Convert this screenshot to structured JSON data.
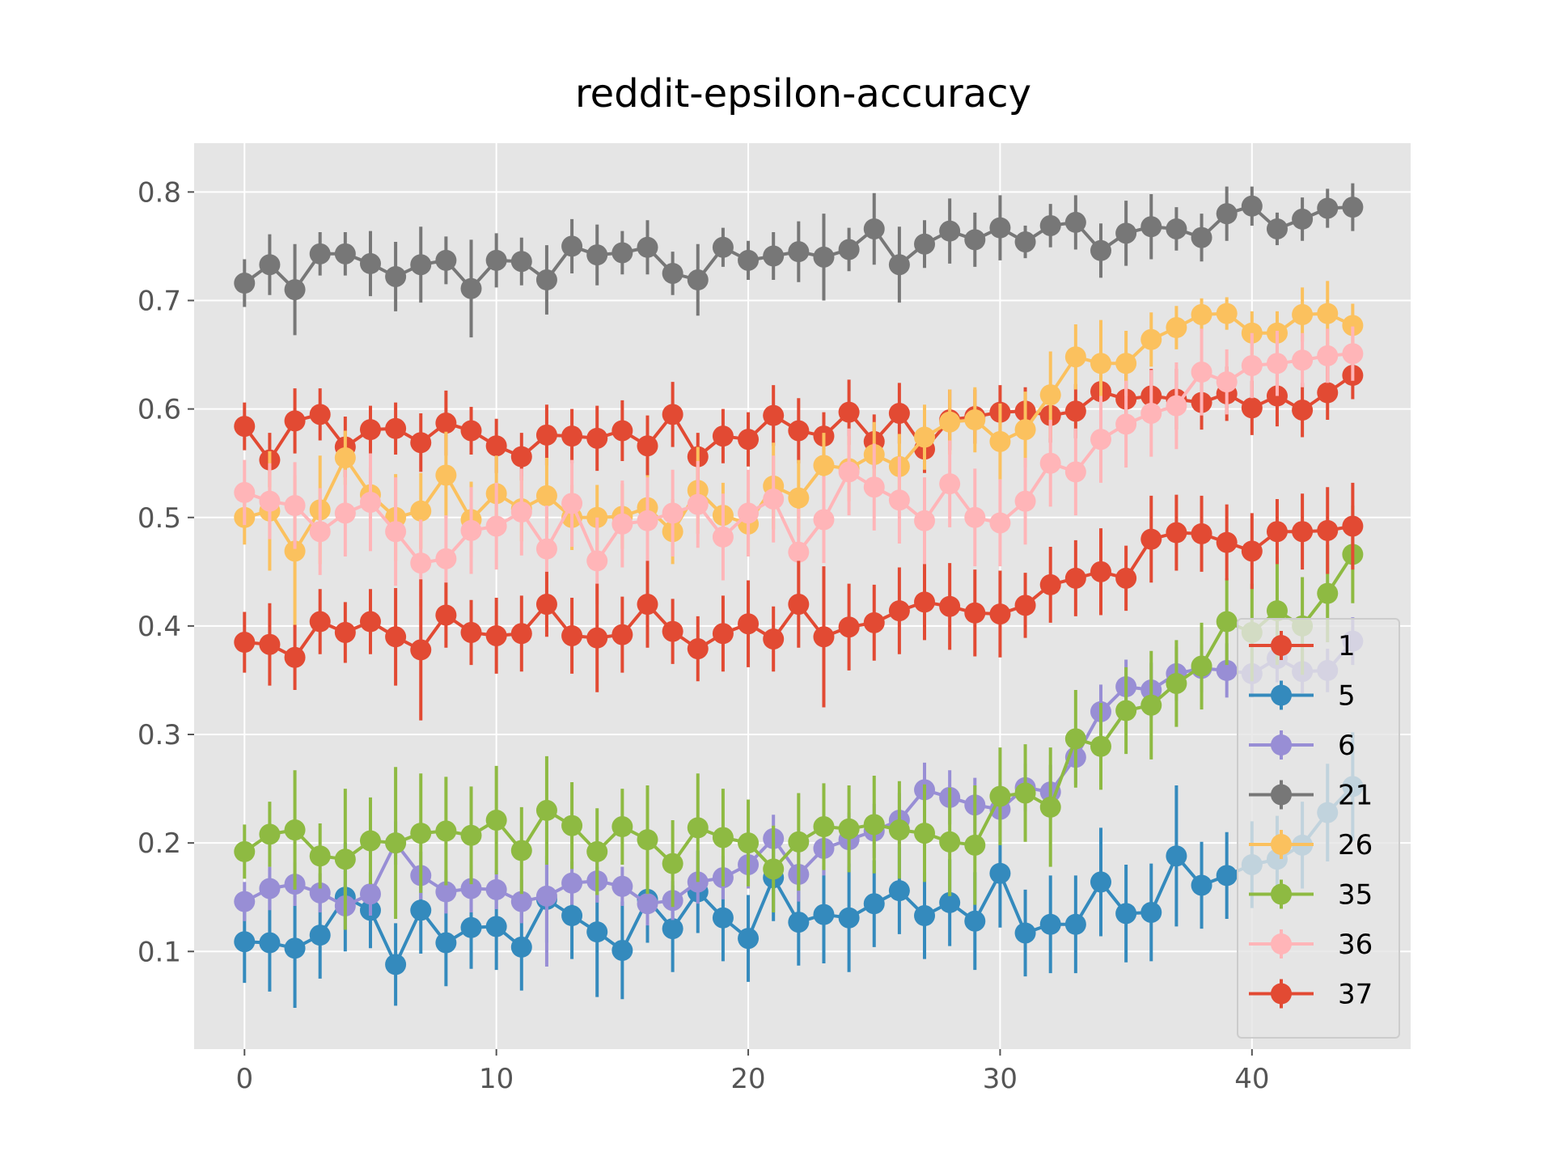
{
  "chart_data": {
    "type": "line",
    "title": "reddit-epsilon-accuracy",
    "xlabel": "",
    "ylabel": "",
    "xlim": [
      -2,
      46.3
    ],
    "ylim": [
      0.01,
      0.845
    ],
    "xticks": [
      0,
      10,
      20,
      30,
      40
    ],
    "xtick_labels": [
      "0",
      "10",
      "20",
      "30",
      "40"
    ],
    "yticks": [
      0.1,
      0.2,
      0.3,
      0.4,
      0.5,
      0.6,
      0.7,
      0.8
    ],
    "ytick_labels": [
      "0.1",
      "0.2",
      "0.3",
      "0.4",
      "0.5",
      "0.6",
      "0.7",
      "0.8"
    ],
    "grid": true,
    "legend_position": "lower-right",
    "error_bars": true,
    "x": [
      0,
      1,
      2,
      3,
      4,
      5,
      6,
      7,
      8,
      9,
      10,
      11,
      12,
      13,
      14,
      15,
      16,
      17,
      18,
      19,
      20,
      21,
      22,
      23,
      24,
      25,
      26,
      27,
      28,
      29,
      30,
      31,
      32,
      33,
      34,
      35,
      36,
      37,
      38,
      39,
      40,
      41,
      42,
      43,
      44
    ],
    "series": [
      {
        "name": "1",
        "color": "#E24A33",
        "values": [
          0.584,
          0.553,
          0.589,
          0.595,
          0.565,
          0.581,
          0.582,
          0.569,
          0.587,
          0.58,
          0.566,
          0.556,
          0.576,
          0.575,
          0.573,
          0.58,
          0.566,
          0.595,
          0.556,
          0.575,
          0.572,
          0.594,
          0.58,
          0.575,
          0.597,
          0.57,
          0.596,
          0.563,
          0.59,
          0.593,
          0.597,
          0.598,
          0.594,
          0.598,
          0.616,
          0.609,
          0.612,
          0.609,
          0.606,
          0.614,
          0.601,
          0.612,
          0.599,
          0.615,
          0.631
        ],
        "errors": [
          0.022,
          0.025,
          0.03,
          0.024,
          0.028,
          0.022,
          0.024,
          0.027,
          0.03,
          0.022,
          0.025,
          0.022,
          0.028,
          0.025,
          0.03,
          0.028,
          0.028,
          0.03,
          0.022,
          0.025,
          0.025,
          0.028,
          0.03,
          0.022,
          0.03,
          0.025,
          0.028,
          0.022,
          0.028,
          0.025,
          0.025,
          0.022,
          0.025,
          0.025,
          0.03,
          0.025,
          0.025,
          0.028,
          0.025,
          0.025,
          0.025,
          0.028,
          0.025,
          0.025,
          0.022
        ]
      },
      {
        "name": "5",
        "color": "#348ABD",
        "values": [
          0.109,
          0.108,
          0.103,
          0.115,
          0.15,
          0.138,
          0.088,
          0.138,
          0.108,
          0.122,
          0.123,
          0.104,
          0.148,
          0.133,
          0.118,
          0.101,
          0.148,
          0.121,
          0.155,
          0.131,
          0.112,
          0.168,
          0.127,
          0.134,
          0.131,
          0.144,
          0.156,
          0.133,
          0.145,
          0.128,
          0.172,
          0.117,
          0.125,
          0.125,
          0.164,
          0.135,
          0.136,
          0.188,
          0.161,
          0.17,
          0.18,
          0.185,
          0.198,
          0.228,
          0.252
        ],
        "errors": [
          0.038,
          0.045,
          0.055,
          0.04,
          0.05,
          0.035,
          0.038,
          0.04,
          0.04,
          0.038,
          0.04,
          0.04,
          0.04,
          0.04,
          0.06,
          0.045,
          0.04,
          0.04,
          0.038,
          0.04,
          0.04,
          0.04,
          0.04,
          0.045,
          0.05,
          0.04,
          0.04,
          0.04,
          0.04,
          0.045,
          0.05,
          0.04,
          0.045,
          0.045,
          0.05,
          0.045,
          0.045,
          0.065,
          0.04,
          0.04,
          0.04,
          0.04,
          0.04,
          0.045,
          0.05
        ]
      },
      {
        "name": "6",
        "color": "#988ED5",
        "values": [
          0.146,
          0.158,
          0.162,
          0.154,
          0.142,
          0.153,
          0.2,
          0.17,
          0.155,
          0.158,
          0.157,
          0.146,
          0.151,
          0.163,
          0.165,
          0.16,
          0.144,
          0.147,
          0.164,
          0.168,
          0.18,
          0.204,
          0.171,
          0.195,
          0.203,
          0.211,
          0.221,
          0.249,
          0.242,
          0.235,
          0.231,
          0.251,
          0.247,
          0.279,
          0.321,
          0.344,
          0.341,
          0.356,
          0.361,
          0.359,
          0.356,
          0.37,
          0.358,
          0.359,
          0.386
        ],
        "errors": [
          0.018,
          0.02,
          0.02,
          0.018,
          0.022,
          0.02,
          0.02,
          0.022,
          0.02,
          0.022,
          0.018,
          0.02,
          0.065,
          0.02,
          0.02,
          0.018,
          0.02,
          0.018,
          0.02,
          0.02,
          0.022,
          0.022,
          0.025,
          0.025,
          0.025,
          0.025,
          0.025,
          0.025,
          0.025,
          0.025,
          0.025,
          0.022,
          0.025,
          0.025,
          0.025,
          0.025,
          0.025,
          0.025,
          0.022,
          0.025,
          0.022,
          0.022,
          0.02,
          0.02,
          0.022
        ]
      },
      {
        "name": "21",
        "color": "#777777",
        "values": [
          0.716,
          0.733,
          0.71,
          0.743,
          0.743,
          0.734,
          0.722,
          0.733,
          0.737,
          0.711,
          0.737,
          0.736,
          0.719,
          0.75,
          0.742,
          0.744,
          0.749,
          0.725,
          0.719,
          0.749,
          0.737,
          0.741,
          0.745,
          0.74,
          0.747,
          0.766,
          0.733,
          0.752,
          0.764,
          0.756,
          0.767,
          0.754,
          0.769,
          0.772,
          0.746,
          0.762,
          0.768,
          0.766,
          0.758,
          0.78,
          0.787,
          0.766,
          0.775,
          0.785,
          0.786
        ],
        "errors": [
          0.022,
          0.028,
          0.042,
          0.02,
          0.02,
          0.03,
          0.032,
          0.035,
          0.022,
          0.045,
          0.025,
          0.022,
          0.032,
          0.025,
          0.028,
          0.02,
          0.025,
          0.02,
          0.033,
          0.018,
          0.018,
          0.022,
          0.028,
          0.04,
          0.02,
          0.033,
          0.035,
          0.022,
          0.03,
          0.025,
          0.03,
          0.015,
          0.02,
          0.025,
          0.025,
          0.03,
          0.03,
          0.02,
          0.022,
          0.025,
          0.018,
          0.015,
          0.02,
          0.018,
          0.022
        ]
      },
      {
        "name": "26",
        "color": "#FBC15E",
        "values": [
          0.5,
          0.506,
          0.469,
          0.507,
          0.555,
          0.521,
          0.5,
          0.506,
          0.539,
          0.498,
          0.522,
          0.508,
          0.52,
          0.5,
          0.5,
          0.501,
          0.509,
          0.487,
          0.525,
          0.502,
          0.494,
          0.529,
          0.518,
          0.548,
          0.545,
          0.558,
          0.547,
          0.574,
          0.588,
          0.59,
          0.57,
          0.581,
          0.613,
          0.648,
          0.642,
          0.642,
          0.664,
          0.675,
          0.687,
          0.688,
          0.67,
          0.67,
          0.687,
          0.688,
          0.677
        ],
        "errors": [
          0.025,
          0.055,
          0.07,
          0.05,
          0.025,
          0.025,
          0.04,
          0.035,
          0.04,
          0.035,
          0.035,
          0.03,
          0.035,
          0.03,
          0.03,
          0.03,
          0.03,
          0.03,
          0.04,
          0.03,
          0.03,
          0.04,
          0.035,
          0.03,
          0.03,
          0.03,
          0.03,
          0.03,
          0.03,
          0.03,
          0.035,
          0.035,
          0.04,
          0.03,
          0.04,
          0.03,
          0.025,
          0.02,
          0.015,
          0.015,
          0.02,
          0.02,
          0.025,
          0.03,
          0.02
        ]
      },
      {
        "name": "35",
        "color": "#8EBA42",
        "values": [
          0.192,
          0.208,
          0.212,
          0.188,
          0.185,
          0.202,
          0.2,
          0.209,
          0.211,
          0.207,
          0.221,
          0.193,
          0.23,
          0.216,
          0.192,
          0.215,
          0.203,
          0.181,
          0.214,
          0.205,
          0.2,
          0.176,
          0.201,
          0.215,
          0.213,
          0.217,
          0.212,
          0.209,
          0.201,
          0.198,
          0.243,
          0.246,
          0.233,
          0.296,
          0.289,
          0.322,
          0.327,
          0.347,
          0.363,
          0.404,
          0.394,
          0.414,
          0.4,
          0.43,
          0.466
        ],
        "errors": [
          0.025,
          0.03,
          0.055,
          0.03,
          0.065,
          0.04,
          0.07,
          0.055,
          0.05,
          0.045,
          0.05,
          0.04,
          0.05,
          0.04,
          0.04,
          0.035,
          0.05,
          0.04,
          0.05,
          0.045,
          0.04,
          0.04,
          0.045,
          0.04,
          0.04,
          0.045,
          0.045,
          0.045,
          0.05,
          0.055,
          0.045,
          0.045,
          0.055,
          0.045,
          0.04,
          0.04,
          0.05,
          0.04,
          0.04,
          0.04,
          0.045,
          0.05,
          0.045,
          0.045,
          0.045
        ]
      },
      {
        "name": "36",
        "color": "#FFB5B8",
        "values": [
          0.523,
          0.515,
          0.511,
          0.487,
          0.504,
          0.514,
          0.487,
          0.458,
          0.462,
          0.488,
          0.492,
          0.505,
          0.471,
          0.513,
          0.46,
          0.494,
          0.497,
          0.504,
          0.512,
          0.482,
          0.504,
          0.517,
          0.468,
          0.498,
          0.542,
          0.528,
          0.516,
          0.497,
          0.531,
          0.5,
          0.495,
          0.515,
          0.55,
          0.542,
          0.572,
          0.586,
          0.596,
          0.603,
          0.634,
          0.625,
          0.64,
          0.642,
          0.645,
          0.649,
          0.651
        ],
        "errors": [
          0.03,
          0.035,
          0.04,
          0.04,
          0.04,
          0.045,
          0.05,
          0.04,
          0.04,
          0.04,
          0.04,
          0.04,
          0.04,
          0.04,
          0.04,
          0.04,
          0.04,
          0.04,
          0.04,
          0.04,
          0.04,
          0.04,
          0.04,
          0.04,
          0.04,
          0.04,
          0.04,
          0.04,
          0.04,
          0.045,
          0.04,
          0.04,
          0.04,
          0.04,
          0.04,
          0.04,
          0.04,
          0.04,
          0.04,
          0.03,
          0.03,
          0.03,
          0.025,
          0.025,
          0.025
        ]
      },
      {
        "name": "37",
        "color": "#E24A33",
        "values": [
          0.385,
          0.383,
          0.371,
          0.404,
          0.394,
          0.404,
          0.39,
          0.378,
          0.41,
          0.394,
          0.391,
          0.393,
          0.42,
          0.391,
          0.389,
          0.392,
          0.42,
          0.395,
          0.379,
          0.393,
          0.402,
          0.388,
          0.42,
          0.39,
          0.399,
          0.403,
          0.414,
          0.422,
          0.418,
          0.412,
          0.411,
          0.419,
          0.438,
          0.444,
          0.45,
          0.444,
          0.48,
          0.486,
          0.485,
          0.477,
          0.469,
          0.487,
          0.487,
          0.488,
          0.492
        ],
        "errors": [
          0.028,
          0.038,
          0.03,
          0.03,
          0.028,
          0.03,
          0.045,
          0.065,
          0.03,
          0.03,
          0.035,
          0.035,
          0.03,
          0.035,
          0.05,
          0.035,
          0.04,
          0.03,
          0.03,
          0.035,
          0.04,
          0.03,
          0.04,
          0.065,
          0.04,
          0.035,
          0.04,
          0.035,
          0.04,
          0.04,
          0.04,
          0.03,
          0.035,
          0.035,
          0.04,
          0.03,
          0.04,
          0.035,
          0.035,
          0.035,
          0.035,
          0.03,
          0.035,
          0.04,
          0.04
        ]
      }
    ]
  }
}
